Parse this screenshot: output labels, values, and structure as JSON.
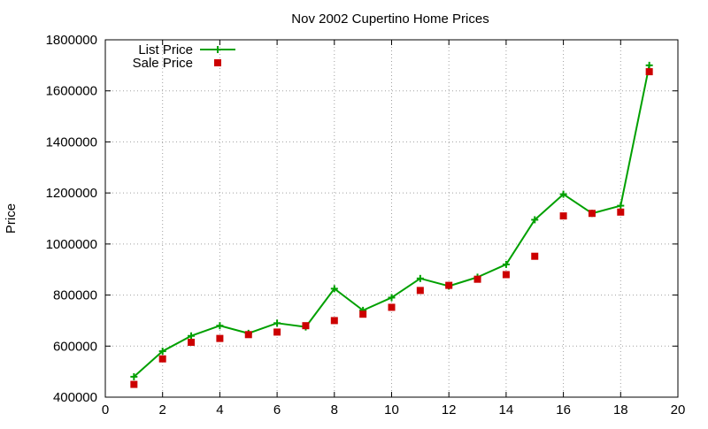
{
  "chart_data": {
    "type": "line",
    "title": "Nov 2002 Cupertino Home Prices",
    "xlabel": "",
    "ylabel": "Price",
    "xlim": [
      0,
      20
    ],
    "ylim": [
      400000,
      1800000
    ],
    "xticks": [
      0,
      2,
      4,
      6,
      8,
      10,
      12,
      14,
      16,
      18,
      20
    ],
    "yticks": [
      400000,
      600000,
      800000,
      1000000,
      1200000,
      1400000,
      1600000,
      1800000
    ],
    "grid": true,
    "legend_position": "top-left",
    "series": [
      {
        "name": "List Price",
        "style": "line-with-plus-markers",
        "color": "#00a000",
        "x": [
          1,
          2,
          3,
          4,
          5,
          6,
          7,
          8,
          9,
          10,
          11,
          12,
          13,
          14,
          15,
          16,
          17,
          18,
          19
        ],
        "values": [
          480000,
          580000,
          640000,
          680000,
          650000,
          690000,
          675000,
          825000,
          740000,
          790000,
          865000,
          835000,
          870000,
          920000,
          1095000,
          1195000,
          1120000,
          1150000,
          1700000
        ]
      },
      {
        "name": "Sale Price",
        "style": "square-markers",
        "color": "#cc0000",
        "x": [
          1,
          2,
          3,
          4,
          5,
          6,
          7,
          8,
          9,
          10,
          11,
          12,
          13,
          14,
          15,
          16,
          17,
          18,
          19
        ],
        "values": [
          450000,
          550000,
          615000,
          630000,
          645000,
          655000,
          680000,
          700000,
          725000,
          752000,
          818000,
          838000,
          862000,
          880000,
          952000,
          1110000,
          1120000,
          1125000,
          1675000
        ]
      }
    ]
  }
}
